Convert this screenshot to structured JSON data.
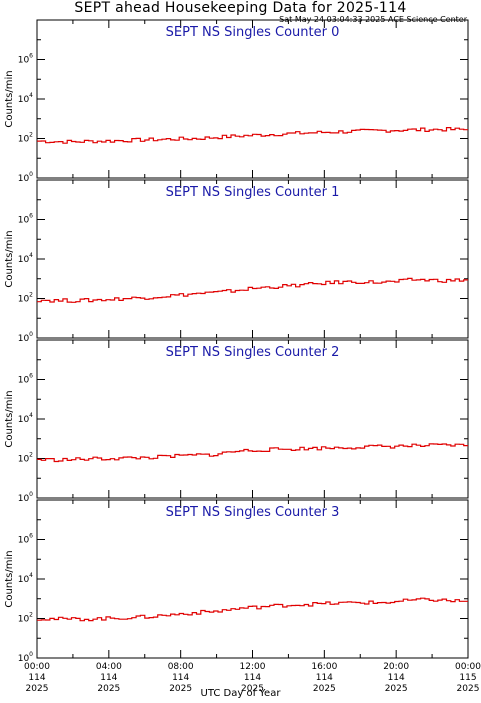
{
  "header": {
    "title": "SEPT ahead Housekeeping Data for 2025-114",
    "timestamp": "Sat May 24 03:04:33 2025 ACE Science Center"
  },
  "colors": {
    "series": "#e00000",
    "panel_title": "#1a1aa8",
    "axes": "#000000"
  },
  "chart_data": [
    {
      "type": "line",
      "title": "SEPT NS Singles Counter 0",
      "ylabel": "Counts/min",
      "yscale": "log",
      "ylim": [
        1,
        100000000
      ],
      "yticks": [
        {
          "base": "10",
          "exp": "0"
        },
        {
          "base": "10",
          "exp": "2"
        },
        {
          "base": "10",
          "exp": "4"
        },
        {
          "base": "10",
          "exp": "6"
        }
      ],
      "xlim": [
        0,
        24
      ],
      "x": [
        0,
        1,
        2,
        3,
        4,
        5,
        6,
        7,
        8,
        9,
        10,
        11,
        12,
        13,
        14,
        15,
        16,
        17,
        18,
        19,
        20,
        21,
        22,
        23,
        24
      ],
      "values": [
        75,
        70,
        68,
        72,
        75,
        80,
        85,
        90,
        95,
        100,
        115,
        130,
        145,
        160,
        175,
        190,
        205,
        220,
        235,
        250,
        265,
        275,
        285,
        290,
        280
      ]
    },
    {
      "type": "line",
      "title": "SEPT NS Singles Counter 1",
      "ylabel": "Counts/min",
      "yscale": "log",
      "ylim": [
        1,
        100000000
      ],
      "yticks": [
        {
          "base": "10",
          "exp": "0"
        },
        {
          "base": "10",
          "exp": "2"
        },
        {
          "base": "10",
          "exp": "4"
        },
        {
          "base": "10",
          "exp": "6"
        }
      ],
      "xlim": [
        0,
        24
      ],
      "x": [
        0,
        1,
        2,
        3,
        4,
        5,
        6,
        7,
        8,
        9,
        10,
        11,
        12,
        13,
        14,
        15,
        16,
        17,
        18,
        19,
        20,
        21,
        22,
        23,
        24
      ],
      "values": [
        85,
        80,
        78,
        82,
        90,
        100,
        110,
        130,
        150,
        180,
        200,
        250,
        320,
        380,
        430,
        500,
        600,
        680,
        700,
        650,
        700,
        900,
        850,
        800,
        900
      ]
    },
    {
      "type": "line",
      "title": "SEPT NS Singles Counter 2",
      "ylabel": "Counts/min",
      "yscale": "log",
      "ylim": [
        1,
        100000000
      ],
      "yticks": [
        {
          "base": "10",
          "exp": "0"
        },
        {
          "base": "10",
          "exp": "2"
        },
        {
          "base": "10",
          "exp": "4"
        },
        {
          "base": "10",
          "exp": "6"
        }
      ],
      "xlim": [
        0,
        24
      ],
      "x": [
        0,
        1,
        2,
        3,
        4,
        5,
        6,
        7,
        8,
        9,
        10,
        11,
        12,
        13,
        14,
        15,
        16,
        17,
        18,
        19,
        20,
        21,
        22,
        23,
        24
      ],
      "values": [
        90,
        85,
        88,
        95,
        100,
        105,
        110,
        120,
        135,
        150,
        160,
        230,
        260,
        280,
        300,
        320,
        340,
        360,
        380,
        400,
        420,
        440,
        450,
        460,
        460
      ]
    },
    {
      "type": "line",
      "title": "SEPT NS Singles Counter 3",
      "ylabel": "Counts/min",
      "yscale": "log",
      "ylim": [
        1,
        100000000
      ],
      "yticks": [
        {
          "base": "10",
          "exp": "0"
        },
        {
          "base": "10",
          "exp": "2"
        },
        {
          "base": "10",
          "exp": "4"
        },
        {
          "base": "10",
          "exp": "6"
        }
      ],
      "xlim": [
        0,
        24
      ],
      "x": [
        0,
        1,
        2,
        3,
        4,
        5,
        6,
        7,
        8,
        9,
        10,
        11,
        12,
        13,
        14,
        15,
        16,
        17,
        18,
        19,
        20,
        21,
        22,
        23,
        24
      ],
      "values": [
        100,
        95,
        92,
        95,
        100,
        110,
        120,
        140,
        170,
        200,
        230,
        300,
        360,
        420,
        480,
        520,
        560,
        600,
        650,
        620,
        700,
        850,
        900,
        800,
        750
      ]
    }
  ],
  "x_axis": {
    "xlabel": "UTC Day of Year",
    "ticks": [
      {
        "time": "00:00",
        "doy": "114",
        "year": "2025"
      },
      {
        "time": "04:00",
        "doy": "114",
        "year": "2025"
      },
      {
        "time": "08:00",
        "doy": "114",
        "year": "2025"
      },
      {
        "time": "12:00",
        "doy": "114",
        "year": "2025"
      },
      {
        "time": "16:00",
        "doy": "114",
        "year": "2025"
      },
      {
        "time": "20:00",
        "doy": "114",
        "year": "2025"
      },
      {
        "time": "00:00",
        "doy": "115",
        "year": "2025"
      }
    ]
  }
}
